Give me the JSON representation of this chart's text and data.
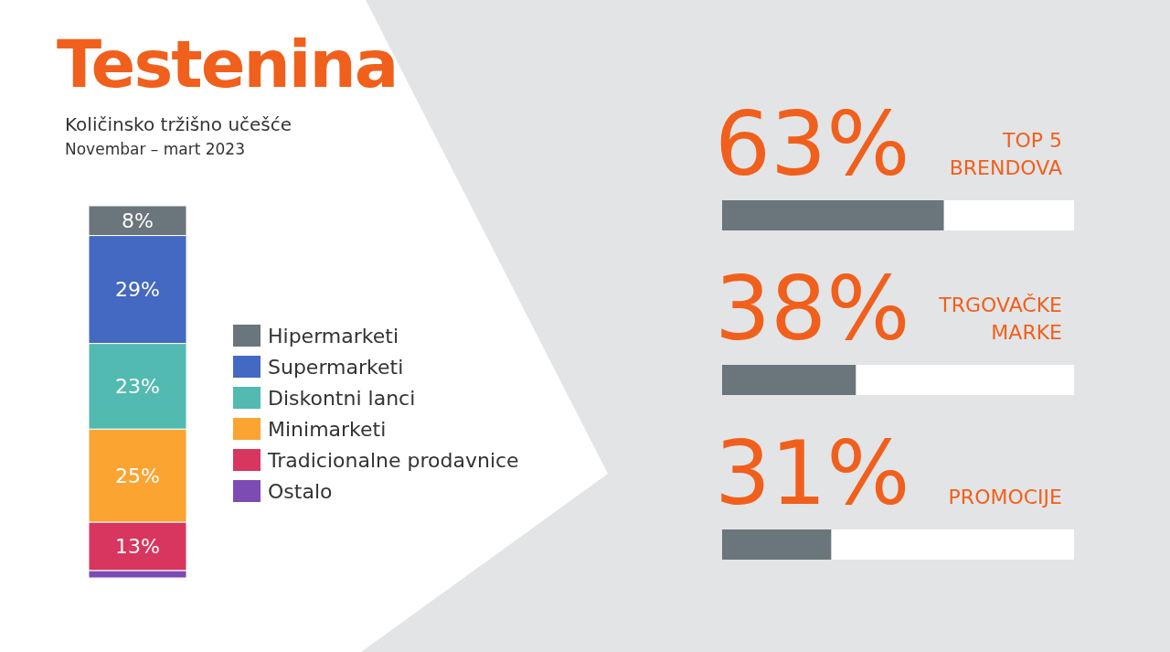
{
  "chart_data": [
    {
      "type": "bar",
      "title": "Testenina",
      "subtitle": "Količinsko tržišno učešće",
      "annotations": [
        "Novembar – mart 2023"
      ],
      "categories": [
        null
      ],
      "stacked": true,
      "legend": "right",
      "series": [
        {
          "name": "Ostalo",
          "color": "#7c4bb4",
          "values": [
            2
          ],
          "value_labels": [
            null
          ]
        },
        {
          "name": "Tradicionalne prodavnice",
          "color": "#d8365f",
          "values": [
            13
          ],
          "value_labels": [
            "13%"
          ]
        },
        {
          "name": "Minimarketi",
          "color": "#fba431",
          "values": [
            25
          ],
          "value_labels": [
            "25%"
          ]
        },
        {
          "name": "Diskontni lanci",
          "color": "#52bab0",
          "values": [
            23
          ],
          "value_labels": [
            "23%"
          ]
        },
        {
          "name": "Supermarketi",
          "color": "#4469c2",
          "values": [
            29
          ],
          "value_labels": [
            "29%"
          ]
        },
        {
          "name": "Hipermarketi",
          "color": "#6b757c",
          "values": [
            8
          ],
          "value_labels": [
            "8%"
          ]
        }
      ]
    },
    {
      "type": "bar",
      "orientation": "horizontal",
      "categories": [
        "TOP 5 BRENDOVA",
        "TRGOVAČKE MARKE",
        "PROMOCIJE"
      ],
      "values": [
        63,
        38,
        31
      ],
      "value_labels": [
        "63%",
        "38%",
        "31%"
      ],
      "color": "#6b757c",
      "xlim": [
        0,
        100
      ]
    }
  ]
}
